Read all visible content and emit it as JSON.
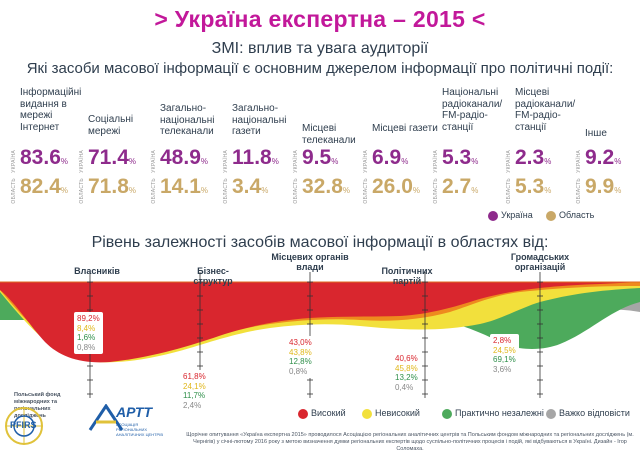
{
  "header": {
    "title": "> Україна експертна – 2015 <",
    "subtitle": "ЗМІ: вплив та увага аудиторії",
    "question": "Які засоби масової інформації є основним джерелом інформації про політичні події:"
  },
  "side_labels": {
    "ukraine": "УКРАЇНА",
    "oblast": "ОБЛАСТЬ"
  },
  "percent_sign": "%",
  "chart_data": [
    {
      "type": "table",
      "categories": [
        "Інформаційні видання в мережі Інтернет",
        "Соціальні мережі",
        "Загально-національні телеканали",
        "Загально-національні газети",
        "Місцеві телеканали",
        "Місцеві газети",
        "Національні радіоканали/ FM-радіо-станції",
        "Місцеві радіоканали/ FM-радіо-станції",
        "Інше"
      ],
      "series": [
        {
          "name": "Україна",
          "values": [
            "83.6",
            "71.4",
            "48.9",
            "11.8",
            "9.5",
            "6.9",
            "5.3",
            "2.3",
            "9.2"
          ],
          "color": "#8e2b8c"
        },
        {
          "name": "Область",
          "values": [
            "82.4",
            "71.8",
            "14.1",
            "3.4",
            "32.8",
            "26.0",
            "2.7",
            "5.3",
            "9.9"
          ],
          "color": "#c9a867"
        }
      ]
    },
    {
      "type": "area",
      "title": "Рівень залежності засобів масової інформації в областях від:",
      "categories": [
        "Власників",
        "Бізнес-структур",
        "Місцевих органів влади",
        "Політичних партій",
        "Громадських організацій"
      ],
      "series": [
        {
          "name": "Високий",
          "color": "#d9262e",
          "values": [
            "89,2%",
            "61,8%",
            "43,0%",
            "40,6%",
            "2,8%"
          ]
        },
        {
          "name": "Невисокий",
          "color": "#f2e03c",
          "values": [
            "8,4%",
            "24,1%",
            "43,8%",
            "45,8%",
            "24,5%"
          ]
        },
        {
          "name": "Практично незалежні",
          "color": "#4daa5c",
          "values": [
            "1,6%",
            "11,7%",
            "12,8%",
            "13,2%",
            "69,1%"
          ]
        },
        {
          "name": "Важко відповісти",
          "color": "#a6a6a6",
          "values": [
            "0,8%",
            "2,4%",
            "0,8%",
            "0,4%",
            "3,6%"
          ]
        }
      ]
    }
  ],
  "footer": {
    "logo1_text": "PFIRS",
    "logo1_caption": "Польський фонд міжнародних та регіональних досліджень",
    "logo2_text": "АРТТ",
    "logo2_caption": "АСОЦІАЦІЯ РЕГІОНАЛЬНИХ АНАЛІТИЧНИХ ЦЕНТРІВ",
    "note": "Щорічне опитування «Україна експертна 2015» проводилося Асоціацією регіональних аналітичних центрів та Польським фондом міжнародних та регіональних досліджень (м. Чернігів) у січні-лютому 2016 року з метою визначення думки регіональних експертів щодо суспільно-політичних процесів і подій, які відбуваються в Україні. Дизайн - Ігор Соломаха."
  }
}
